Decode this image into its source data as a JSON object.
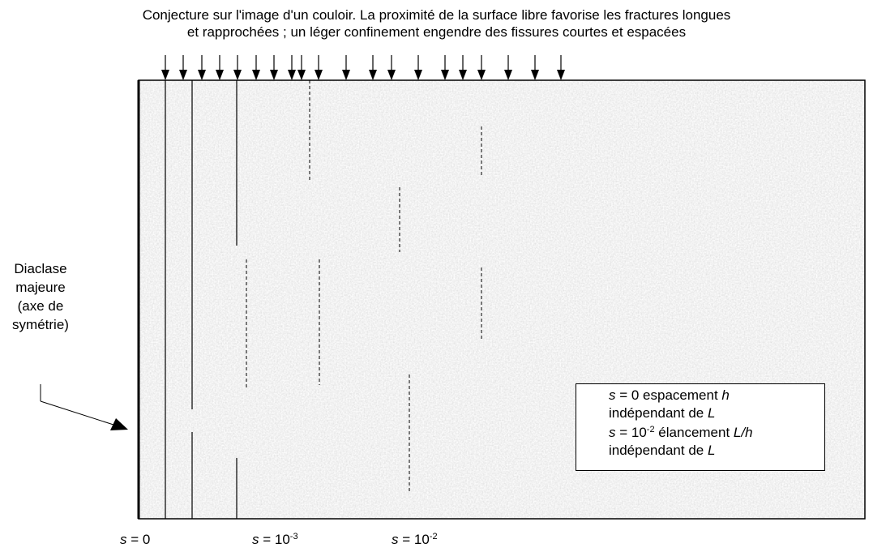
{
  "title": {
    "line1": "Conjecture sur l'image d'un couloir. La proximité de la surface libre favorise les fractures longues",
    "line2": "et rapprochées ; un léger confinement engendre des fissures courtes et espacées"
  },
  "side_label": {
    "lines": [
      "Diaclase",
      "majeure",
      "(axe de",
      "symétrie)"
    ]
  },
  "legend": {
    "row1_var": "s",
    "row1_eq": " = 0 espacement ",
    "row1_h": "h",
    "row2_pre": "indépendant de ",
    "row2_L": "L",
    "row3_var": "s",
    "row3_eq": " = 10",
    "row3_exp": "-2",
    "row3_rest": " élancement ",
    "row3_ratio": "L/h",
    "row4_pre": "indépendant de ",
    "row4_L": "L"
  },
  "s_labels": [
    {
      "var": "s",
      "eq": " = 0",
      "exp": ""
    },
    {
      "var": "s",
      "eq": " = 10",
      "exp": "-3"
    },
    {
      "var": "s",
      "eq": " = 10",
      "exp": "-2"
    }
  ],
  "colors": {
    "block_fill": "#ebebeb",
    "speckle_dark": "#c9c9c9",
    "speckle_light": "#fafafa",
    "line": "#000000"
  },
  "icons": {
    "load_arrow": "down-arrow-icon",
    "pointer_arrow": "arrow-icon"
  }
}
